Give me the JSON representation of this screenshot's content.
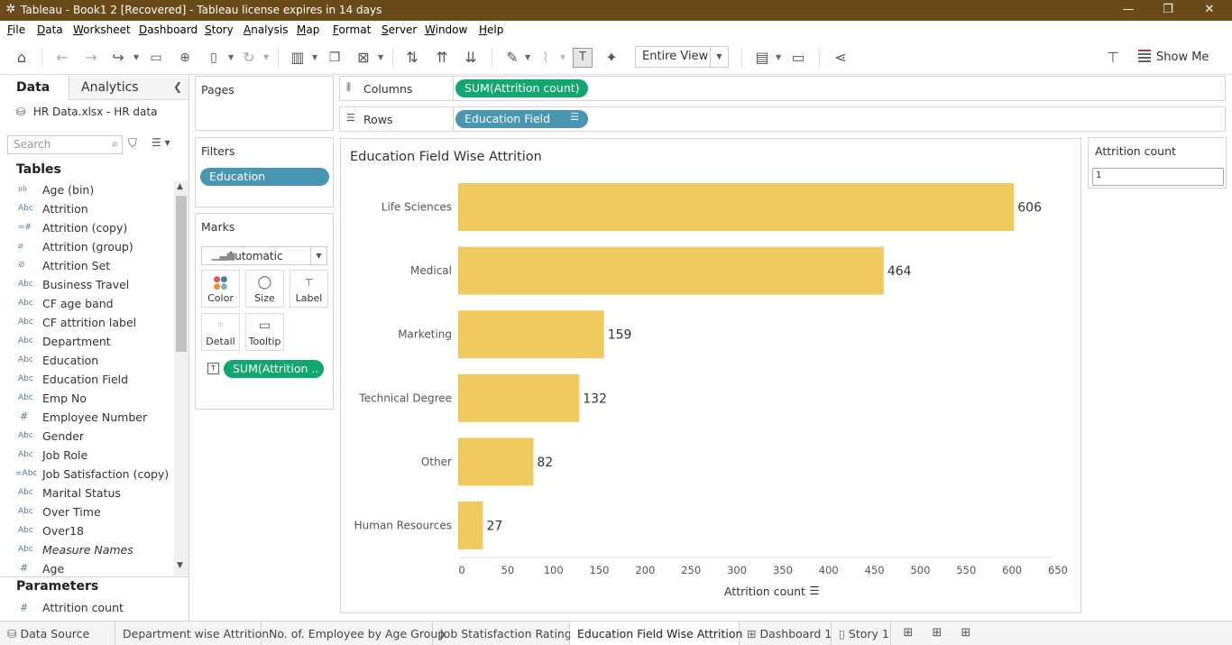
{
  "window": {
    "title": "Tableau - Book1  2 [Recovered] - Tableau license expires in 14 days",
    "minimize": "—",
    "restore": "❐",
    "close": "✕"
  },
  "menu": [
    "File",
    "Data",
    "Worksheet",
    "Dashboard",
    "Story",
    "Analysis",
    "Map",
    "Format",
    "Server",
    "Window",
    "Help"
  ],
  "toolbar": {
    "fit": "Entire View",
    "show_me": "Show Me"
  },
  "data_pane": {
    "tab_data": "Data",
    "tab_analytics": "Analytics",
    "datasource": "HR Data.xlsx - HR data",
    "search_placeholder": "Search",
    "tables_header": "Tables",
    "fields": [
      {
        "type": "bin",
        "name": "Age (bin)"
      },
      {
        "type": "Abc",
        "name": "Attrition"
      },
      {
        "type": "=#",
        "name": "Attrition (copy)"
      },
      {
        "type": "clip",
        "name": "Attrition (group)"
      },
      {
        "type": "set",
        "name": "Attrition Set"
      },
      {
        "type": "Abc",
        "name": "Business Travel"
      },
      {
        "type": "Abc",
        "name": "CF age band"
      },
      {
        "type": "Abc",
        "name": "CF attrition label"
      },
      {
        "type": "Abc",
        "name": "Department"
      },
      {
        "type": "Abc",
        "name": "Education"
      },
      {
        "type": "Abc",
        "name": "Education Field"
      },
      {
        "type": "Abc",
        "name": "Emp No"
      },
      {
        "type": "#",
        "name": "Employee Number"
      },
      {
        "type": "Abc",
        "name": "Gender"
      },
      {
        "type": "Abc",
        "name": "Job Role"
      },
      {
        "type": "=Abc",
        "name": "Job Satisfaction (copy)"
      },
      {
        "type": "Abc",
        "name": "Marital Status"
      },
      {
        "type": "Abc",
        "name": "Over Time"
      },
      {
        "type": "Abc",
        "name": "Over18"
      },
      {
        "type": "Abc",
        "name": "Measure Names"
      },
      {
        "type": "#",
        "name": "Age"
      }
    ],
    "params_header": "Parameters",
    "param": "Attrition count"
  },
  "cards": {
    "pages": "Pages",
    "filters": "Filters",
    "filter_pill": "Education",
    "marks": "Marks",
    "mark_type": "Automatic",
    "mark_buttons": [
      "Color",
      "Size",
      "Label",
      "Detail",
      "Tooltip"
    ],
    "mark_pill": "SUM(Attrition ..",
    "param_title": "Attrition count",
    "param_value": "1"
  },
  "shelves": {
    "columns_label": "Columns",
    "columns_pill": "SUM(Attrition count)",
    "rows_label": "Rows",
    "rows_pill": "Education Field"
  },
  "sheet_tabs": [
    {
      "label": "Data Source",
      "icon": "database-icon"
    },
    {
      "label": "Department wise Attrition",
      "icon": ""
    },
    {
      "label": "No. of. Employee by Age Group",
      "icon": ""
    },
    {
      "label": "Job Statisfaction Rating",
      "icon": ""
    },
    {
      "label": "Education Field Wise Attrition",
      "icon": "",
      "active": true
    },
    {
      "label": "Dashboard 1",
      "icon": "dashboard-icon"
    },
    {
      "label": "Story 1",
      "icon": "story-icon"
    }
  ],
  "colors": {
    "bar": "#eeca5f",
    "pill_blue": "#4996b2",
    "pill_green": "#13a770",
    "titlebar": "#6b4a1a"
  },
  "chart_data": {
    "type": "bar",
    "orientation": "horizontal",
    "title": "Education Field Wise Attrition",
    "xlabel": "Attrition count",
    "ylabel": "",
    "categories": [
      "Life Sciences",
      "Medical",
      "Marketing",
      "Technical Degree",
      "Other",
      "Human Resources"
    ],
    "values": [
      606,
      464,
      159,
      132,
      82,
      27
    ],
    "xlim": [
      0,
      650
    ],
    "xticks": [
      0,
      50,
      100,
      150,
      200,
      250,
      300,
      350,
      400,
      450,
      500,
      550,
      600,
      650
    ],
    "grid": false
  }
}
